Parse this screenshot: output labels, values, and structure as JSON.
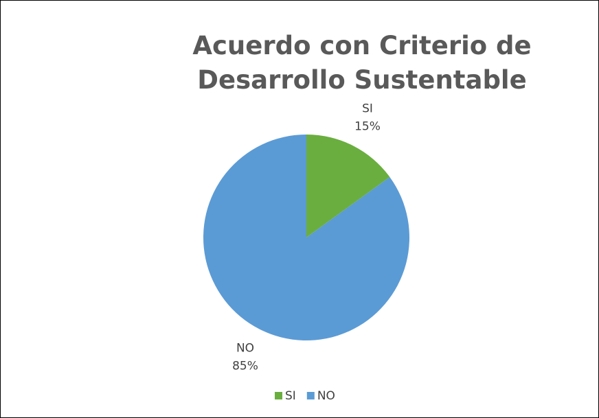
{
  "chart_data": {
    "type": "pie",
    "title": "Acuerdo con Criterio de Desarrollo Sustentable",
    "categories": [
      "SI",
      "NO"
    ],
    "values": [
      15,
      85
    ],
    "value_labels": [
      "15%",
      "85%"
    ],
    "colors": [
      "#6aae3f",
      "#5b9bd5"
    ],
    "legend": "bottom"
  }
}
